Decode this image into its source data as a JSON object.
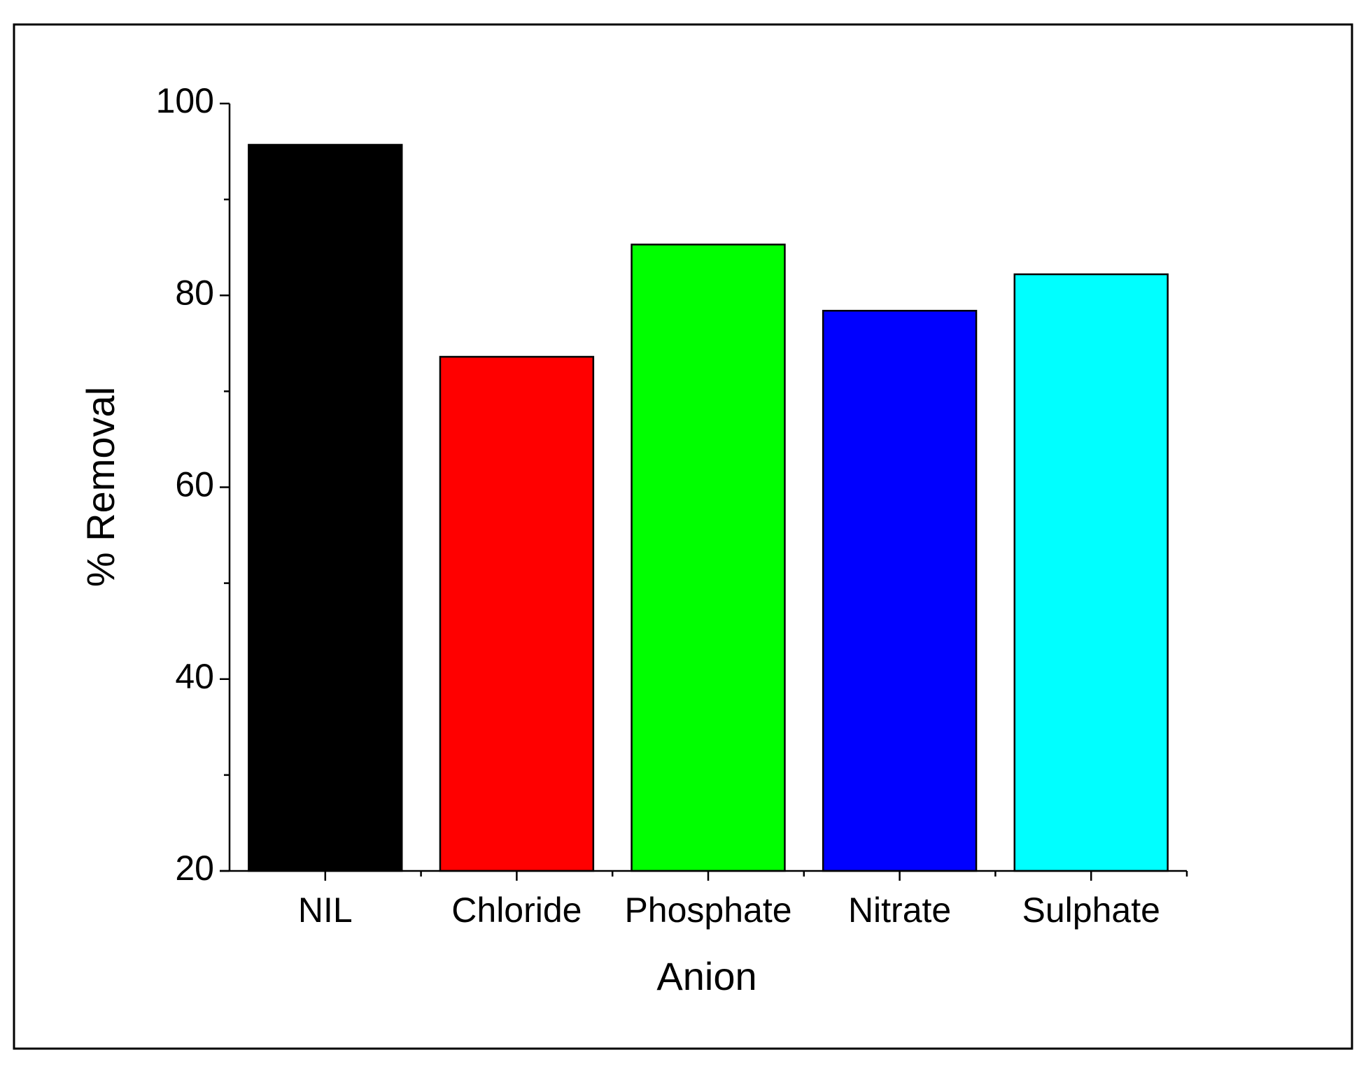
{
  "chart_data": {
    "type": "bar",
    "x_label": "Anion",
    "y_label": "% Removal",
    "categories": [
      "NIL",
      "Chloride",
      "Phosphate",
      "Nitrate",
      "Sulphate"
    ],
    "values": [
      95.7,
      73.6,
      85.3,
      78.4,
      82.2
    ],
    "colors": [
      "#000000",
      "#ff0000",
      "#00ff00",
      "#0000ff",
      "#00ffff"
    ],
    "ylim": [
      20,
      100
    ],
    "yticks": [
      20,
      40,
      60,
      80,
      100
    ],
    "yminor_ticks": [
      30,
      50,
      70,
      90
    ]
  }
}
